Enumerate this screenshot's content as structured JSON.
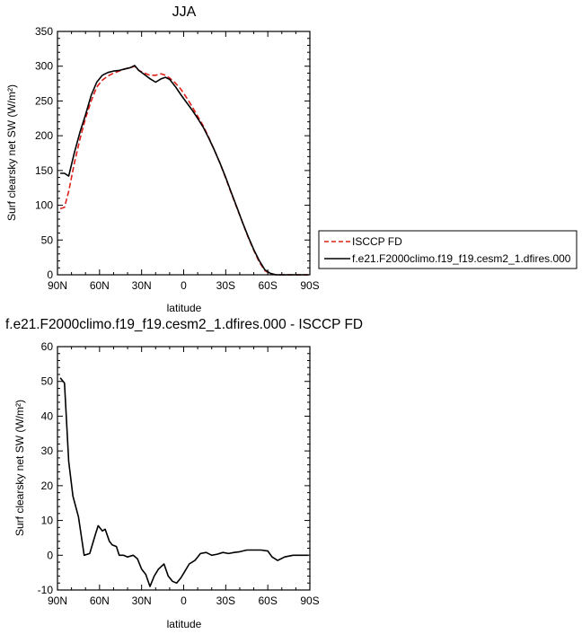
{
  "chart_data": [
    {
      "type": "line",
      "title": "JJA",
      "xlabel": "latitude",
      "ylabel": "Surf clearsky net SW (W/m²)",
      "xlim": [
        90,
        -90
      ],
      "ylim": [
        0,
        350
      ],
      "x_ticks": [
        90,
        60,
        30,
        0,
        -30,
        -60,
        -90
      ],
      "x_tick_labels": [
        "90N",
        "60N",
        "30N",
        "0",
        "30S",
        "60S",
        "90S"
      ],
      "y_ticks": [
        0,
        50,
        100,
        150,
        200,
        250,
        300,
        350
      ],
      "y_tick_labels": [
        "0",
        "50",
        "100",
        "150",
        "200",
        "250",
        "300",
        "350"
      ],
      "legend": {
        "placement": "right",
        "entries": [
          "ISCCP FD",
          "f.e21.F2000climo.f19_f19.cesm2_1.dfires.000"
        ]
      },
      "series": [
        {
          "name": "ISCCP FD",
          "color": "#e0201b",
          "dash": "dashed",
          "x": [
            88,
            85,
            82,
            78,
            74,
            70,
            66,
            62,
            58,
            54,
            50,
            46,
            42,
            38,
            35,
            32,
            28,
            24,
            20,
            16,
            13,
            10,
            6,
            2,
            -2,
            -6,
            -10,
            -14,
            -18,
            -22,
            -26,
            -30,
            -34,
            -38,
            -42,
            -46,
            -50,
            -54,
            -58,
            -62,
            -66,
            -70,
            -74,
            -78,
            -82,
            -86,
            -89
          ],
          "values": [
            95,
            97,
            120,
            160,
            195,
            225,
            250,
            270,
            280,
            286,
            290,
            293,
            296,
            298,
            300,
            294,
            290,
            287,
            287,
            289,
            287,
            283,
            276,
            267,
            255,
            242,
            228,
            214,
            197,
            179,
            160,
            139,
            117,
            96,
            75,
            54,
            35,
            18,
            6,
            1,
            0,
            0,
            0,
            0,
            0,
            0,
            0
          ]
        },
        {
          "name": "f.e21.F2000climo.f19_f19.cesm2_1.dfires.000",
          "color": "#000000",
          "dash": "solid",
          "x": [
            88,
            85,
            82,
            78,
            74,
            70,
            66,
            62,
            58,
            54,
            50,
            46,
            42,
            38,
            35,
            32,
            28,
            24,
            20,
            16,
            13,
            10,
            6,
            2,
            -2,
            -6,
            -10,
            -14,
            -18,
            -22,
            -26,
            -30,
            -34,
            -38,
            -42,
            -46,
            -50,
            -54,
            -58,
            -62,
            -66,
            -70,
            -74,
            -78,
            -82,
            -86,
            -89
          ],
          "values": [
            146,
            146,
            142,
            175,
            205,
            230,
            258,
            277,
            287,
            291,
            293,
            294,
            296,
            298,
            301,
            294,
            288,
            282,
            277,
            282,
            284,
            281,
            271,
            259,
            248,
            237,
            225,
            212,
            196,
            179,
            160,
            140,
            118,
            97,
            75,
            55,
            36,
            20,
            7,
            2,
            0,
            0,
            0,
            0,
            0,
            0,
            0
          ]
        }
      ]
    },
    {
      "type": "line",
      "title": "f.e21.F2000climo.f19_f19.cesm2_1.dfires.000 - ISCCP FD",
      "xlabel": "latitude",
      "ylabel": "Surf clearsky net SW (W/m²)",
      "xlim": [
        90,
        -90
      ],
      "ylim": [
        -10,
        60
      ],
      "x_ticks": [
        90,
        60,
        30,
        0,
        -30,
        -60,
        -90
      ],
      "x_tick_labels": [
        "90N",
        "60N",
        "30N",
        "0",
        "30S",
        "60S",
        "90S"
      ],
      "y_ticks": [
        -10,
        0,
        10,
        20,
        30,
        40,
        50,
        60
      ],
      "y_tick_labels": [
        "-10",
        "0",
        "10",
        "20",
        "30",
        "40",
        "50",
        "60"
      ],
      "series": [
        {
          "color": "#000000",
          "dash": "solid",
          "x": [
            88,
            85,
            82,
            79,
            75,
            71,
            67,
            63,
            61,
            58,
            56,
            53,
            51,
            48,
            46,
            43,
            40,
            36,
            33,
            30,
            27,
            24,
            21,
            18,
            14,
            11,
            8,
            5,
            2,
            -1,
            -4,
            -8,
            -12,
            -16,
            -20,
            -24,
            -28,
            -32,
            -36,
            -40,
            -45,
            -50,
            -55,
            -60,
            -63,
            -67,
            -72,
            -78,
            -84,
            -89
          ],
          "values": [
            51,
            49.5,
            27,
            17,
            11,
            0,
            0.5,
            6,
            8.5,
            7,
            7.5,
            4,
            3,
            2.5,
            0,
            0,
            -0.5,
            0,
            -1,
            -4,
            -5.5,
            -9,
            -6,
            -4,
            -2.5,
            -6,
            -7.5,
            -8,
            -6.5,
            -4.5,
            -2.5,
            -1.5,
            0.5,
            0.8,
            0,
            0.3,
            0.8,
            0.5,
            0.8,
            1,
            1.5,
            1.5,
            1.5,
            1.2,
            -0.5,
            -1.5,
            -0.5,
            0,
            0,
            0
          ]
        }
      ]
    }
  ]
}
